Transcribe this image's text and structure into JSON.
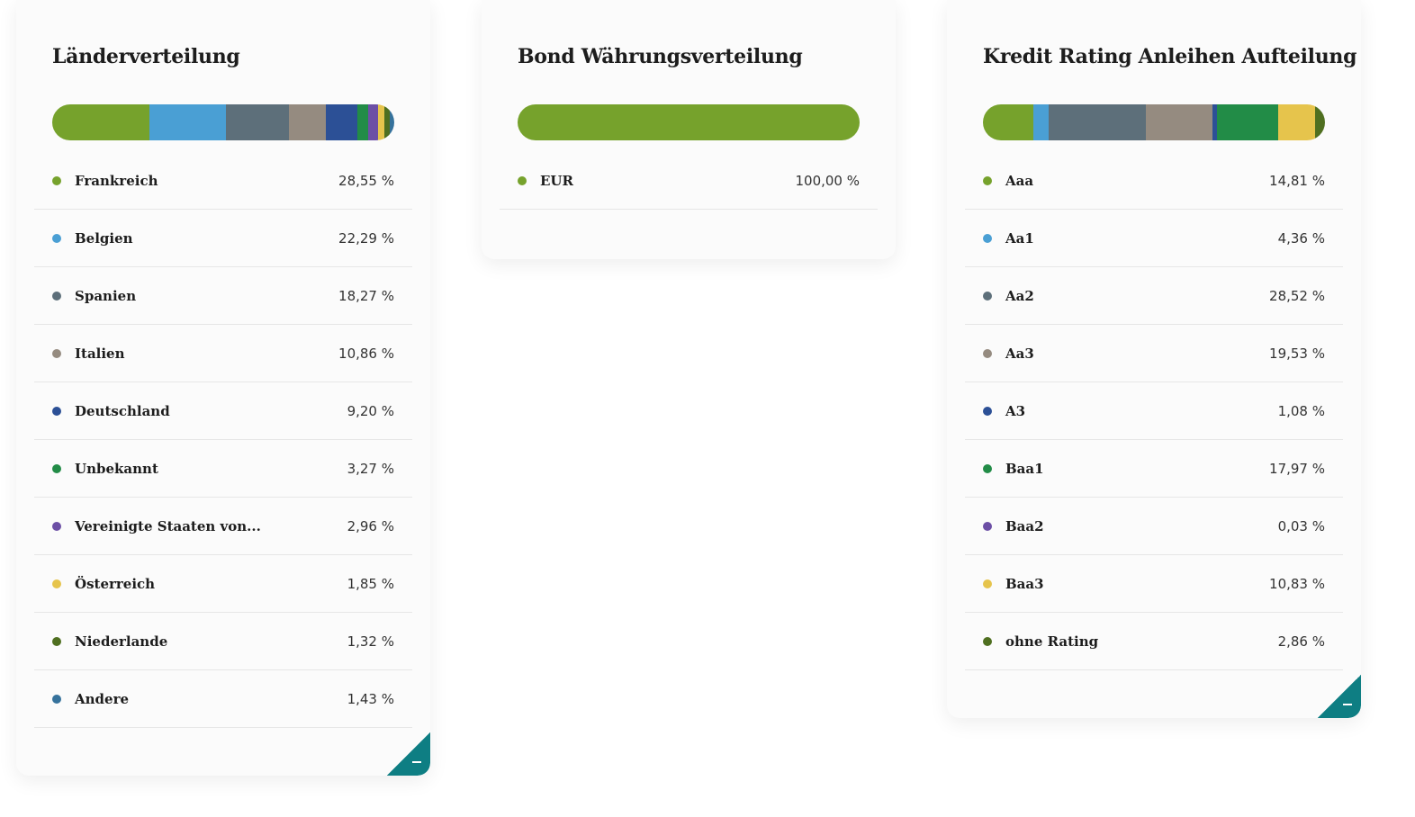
{
  "cards": [
    {
      "id": "countries",
      "title": "Länderverteilung",
      "items": [
        {
          "label": "Frankreich",
          "value": "28,55 %",
          "pct": 28.55,
          "color": "#76a22c"
        },
        {
          "label": "Belgien",
          "value": "22,29 %",
          "pct": 22.29,
          "color": "#4a9fd4"
        },
        {
          "label": "Spanien",
          "value": "18,27 %",
          "pct": 18.27,
          "color": "#5d6f7a"
        },
        {
          "label": "Italien",
          "value": "10,86 %",
          "pct": 10.86,
          "color": "#958b80"
        },
        {
          "label": "Deutschland",
          "value": "9,20 %",
          "pct": 9.2,
          "color": "#2c5096"
        },
        {
          "label": "Unbekannt",
          "value": "3,27 %",
          "pct": 3.27,
          "color": "#228c47"
        },
        {
          "label": "Vereinigte Staaten von...",
          "value": "2,96 %",
          "pct": 2.96,
          "color": "#6c4fa5"
        },
        {
          "label": "Österreich",
          "value": "1,85 %",
          "pct": 1.85,
          "color": "#e6c44c"
        },
        {
          "label": "Niederlande",
          "value": "1,32 %",
          "pct": 1.32,
          "color": "#4f6f20"
        },
        {
          "label": "Andere",
          "value": "1,43 %",
          "pct": 1.43,
          "color": "#36729c"
        }
      ]
    },
    {
      "id": "currency",
      "title": "Bond Währungsverteilung",
      "items": [
        {
          "label": "EUR",
          "value": "100,00 %",
          "pct": 100.0,
          "color": "#76a22c"
        }
      ]
    },
    {
      "id": "rating",
      "title": "Kredit Rating Anleihen Aufteilung",
      "items": [
        {
          "label": "Aaa",
          "value": "14,81 %",
          "pct": 14.81,
          "color": "#76a22c"
        },
        {
          "label": "Aa1",
          "value": "4,36 %",
          "pct": 4.36,
          "color": "#4a9fd4"
        },
        {
          "label": "Aa2",
          "value": "28,52 %",
          "pct": 28.52,
          "color": "#5d6f7a"
        },
        {
          "label": "Aa3",
          "value": "19,53 %",
          "pct": 19.53,
          "color": "#958b80"
        },
        {
          "label": "A3",
          "value": "1,08 %",
          "pct": 1.08,
          "color": "#2c5096"
        },
        {
          "label": "Baa1",
          "value": "17,97 %",
          "pct": 17.97,
          "color": "#228c47"
        },
        {
          "label": "Baa2",
          "value": "0,03 %",
          "pct": 0.03,
          "color": "#6c4fa5"
        },
        {
          "label": "Baa3",
          "value": "10,83 %",
          "pct": 10.83,
          "color": "#e6c44c"
        },
        {
          "label": "ohne Rating",
          "value": "2,86 %",
          "pct": 2.86,
          "color": "#4f6f20"
        }
      ]
    }
  ],
  "collapse_icon": "minus-icon",
  "accent_color": "#0e7e83"
}
